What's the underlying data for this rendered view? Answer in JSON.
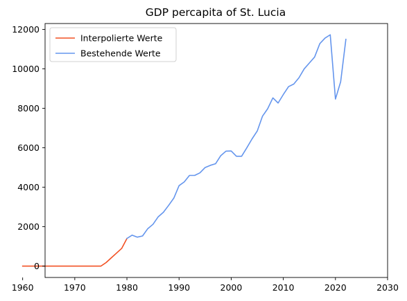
{
  "chart_data": {
    "type": "line",
    "title": "GDP percapita of St. Lucia",
    "xlabel": "",
    "ylabel": "",
    "xlim": [
      1964.3,
      2030
    ],
    "ylim": [
      -575,
      12300
    ],
    "xticks": [
      1960,
      1970,
      1980,
      1990,
      2000,
      2010,
      2020,
      2030
    ],
    "yticks": [
      0,
      2000,
      4000,
      6000,
      8000,
      10000,
      12000
    ],
    "grid": false,
    "legend_position": "top-left",
    "series": [
      {
        "name": "Interpolierte Werte",
        "color": "#f25022",
        "x": [
          1960,
          1961,
          1962,
          1963,
          1964,
          1965,
          1966,
          1967,
          1968,
          1969,
          1970,
          1971,
          1972,
          1973,
          1974,
          1975,
          1976,
          1977,
          1978,
          1979,
          1980
        ],
        "y": [
          0,
          0,
          0,
          0,
          0,
          0,
          0,
          0,
          0,
          0,
          0,
          0,
          0,
          0,
          0,
          0,
          180,
          420,
          660,
          900,
          1400
        ]
      },
      {
        "name": "Bestehende Werte",
        "color": "#6495ed",
        "x": [
          1980,
          1981,
          1982,
          1983,
          1984,
          1985,
          1986,
          1987,
          1988,
          1989,
          1990,
          1991,
          1992,
          1993,
          1994,
          1995,
          1996,
          1997,
          1998,
          1999,
          2000,
          2001,
          2002,
          2003,
          2004,
          2005,
          2006,
          2007,
          2008,
          2009,
          2010,
          2011,
          2012,
          2013,
          2014,
          2015,
          2016,
          2017,
          2018,
          2019,
          2020,
          2021,
          2022
        ],
        "y": [
          1400,
          1570,
          1470,
          1530,
          1900,
          2120,
          2500,
          2730,
          3080,
          3450,
          4080,
          4270,
          4600,
          4600,
          4730,
          5000,
          5110,
          5190,
          5600,
          5830,
          5840,
          5570,
          5570,
          6000,
          6450,
          6850,
          7600,
          7980,
          8530,
          8270,
          8700,
          9100,
          9230,
          9550,
          10000,
          10300,
          10600,
          11280,
          11560,
          11730,
          8470,
          9350,
          11500
        ]
      }
    ]
  }
}
